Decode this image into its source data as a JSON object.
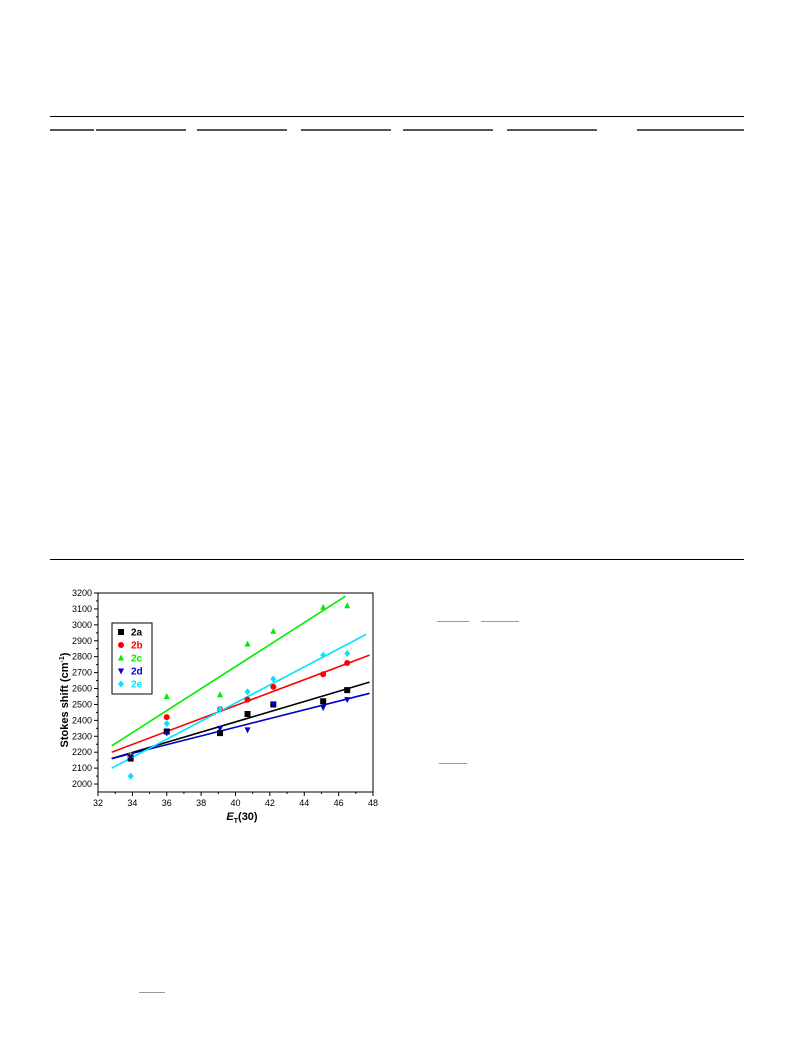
{
  "chart_data": {
    "type": "scatter",
    "xlabel_main": "E",
    "xlabel_sub": "T",
    "xlabel_rest": "(30)",
    "ylabel": "Stokes shift (cm",
    "ylabel_sup": "-1",
    "ylabel_close": ")",
    "xlim": [
      32,
      48
    ],
    "ylim": [
      1950,
      3200
    ],
    "x_ticks": [
      32,
      34,
      36,
      38,
      40,
      42,
      44,
      46,
      48
    ],
    "y_ticks": [
      2000,
      2100,
      2200,
      2300,
      2400,
      2500,
      2600,
      2700,
      2800,
      2900,
      3000,
      3100,
      3200
    ],
    "legend_position": "top-left",
    "series": [
      {
        "name": "2a",
        "color": "#000000",
        "marker": "square",
        "x": [
          33.9,
          36.0,
          39.1,
          40.7,
          42.2,
          45.1,
          46.5
        ],
        "y": [
          2160,
          2330,
          2320,
          2440,
          2500,
          2520,
          2590
        ],
        "fit": [
          [
            32.8,
            2160
          ],
          [
            47.8,
            2640
          ]
        ]
      },
      {
        "name": "2b",
        "color": "#ff0000",
        "marker": "circle",
        "x": [
          33.9,
          36.0,
          39.1,
          40.7,
          42.2,
          45.1,
          46.5
        ],
        "y": [
          2180,
          2420,
          2470,
          2530,
          2610,
          2690,
          2760
        ],
        "fit": [
          [
            32.8,
            2200
          ],
          [
            47.8,
            2810
          ]
        ]
      },
      {
        "name": "2c",
        "color": "#00ee00",
        "marker": "triangle-up",
        "x": [
          33.9,
          36.0,
          39.1,
          40.7,
          42.2,
          45.1,
          46.5
        ],
        "y": [
          2180,
          2550,
          2560,
          2880,
          2960,
          3110,
          3120
        ],
        "fit": [
          [
            32.8,
            2240
          ],
          [
            46.4,
            3180
          ]
        ]
      },
      {
        "name": "2d",
        "color": "#0000cc",
        "marker": "triangle-down",
        "x": [
          33.9,
          36.0,
          39.1,
          40.7,
          42.2,
          45.1,
          46.5
        ],
        "y": [
          2170,
          2320,
          2350,
          2340,
          2500,
          2480,
          2530
        ],
        "fit": [
          [
            32.8,
            2160
          ],
          [
            47.8,
            2570
          ]
        ]
      },
      {
        "name": "2e",
        "color": "#00e5ff",
        "marker": "diamond",
        "x": [
          33.9,
          36.0,
          39.1,
          40.7,
          42.2,
          45.1,
          46.5
        ],
        "y": [
          2050,
          2380,
          2470,
          2580,
          2660,
          2810,
          2820
        ],
        "fit": [
          [
            32.8,
            2100
          ],
          [
            47.6,
            2940
          ]
        ]
      }
    ]
  }
}
